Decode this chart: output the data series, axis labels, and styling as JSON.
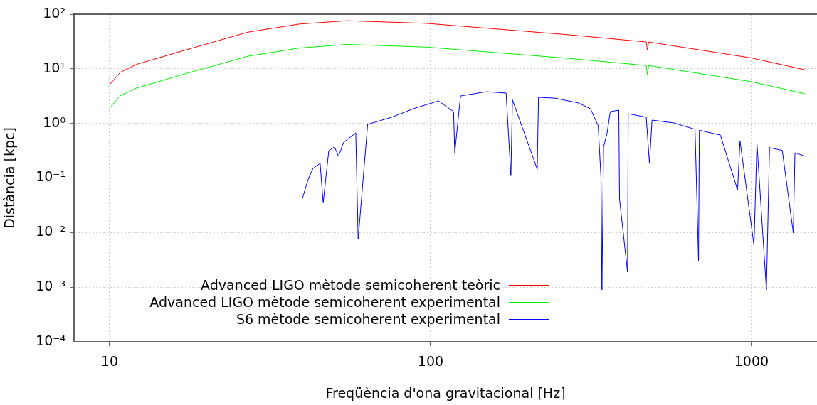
{
  "chart_data": {
    "type": "line",
    "xlabel": "Freqüència d'ona gravitacional [Hz]",
    "ylabel": "Distància [kpc]",
    "log": "xy",
    "grid": true,
    "legend": "bottom",
    "marker": "none",
    "line_style": "solid",
    "xlim": [
      7.75,
      1600
    ],
    "xticks": [
      10,
      100,
      1000
    ],
    "ylim": [
      0.0001,
      100
    ],
    "yticks": [
      {
        "value": 100,
        "label": "10²"
      },
      {
        "value": 10,
        "label": "10¹"
      },
      {
        "value": 1,
        "label": "10⁰"
      },
      {
        "value": 0.1,
        "label": "10⁻¹"
      },
      {
        "value": 0.01,
        "label": "10⁻²"
      },
      {
        "value": 0.001,
        "label": "10⁻³"
      },
      {
        "value": 0.0001,
        "label": "10⁻⁴"
      }
    ],
    "series": [
      {
        "name": "Advanced LIGO mètode semicoherent teòric",
        "color": "#ff0000",
        "x": [
          10,
          10.8,
          12.1,
          17.2,
          27,
          39,
          55,
          97,
          270,
          470,
          474,
          478,
          1000,
          1466
        ],
        "values": [
          5.1,
          8.6,
          12,
          22,
          47,
          66,
          76,
          68,
          42,
          31,
          21.7,
          31,
          15.8,
          9.6
        ]
      },
      {
        "name": "Advanced LIGO mètode semicoherent experimental",
        "color": "#00ee00",
        "x": [
          10,
          10.8,
          12.1,
          17.2,
          27,
          39,
          55,
          97,
          270,
          470,
          474,
          478,
          1000,
          1466
        ],
        "values": [
          1.9,
          3.2,
          4.4,
          8.1,
          17,
          24,
          28,
          25,
          15.5,
          11.5,
          7.8,
          11.5,
          5.8,
          3.5
        ]
      },
      {
        "name": "S6 mètode semicoherent experimental",
        "color": "#0000ff",
        "x": [
          39.9,
          41.5,
          43,
          45.3,
          46.3,
          48.2,
          50.2,
          51.7,
          53.6,
          58.5,
          59.5,
          63.7,
          75.5,
          89.4,
          106,
          118,
          119,
          124,
          149,
          172,
          178,
          180,
          215,
          217,
          244,
          289,
          315,
          333,
          340,
          342,
          346,
          355,
          363,
          386,
          388,
          411,
          413,
          470,
          481,
          490,
          573,
          667,
          684,
          688,
          800,
          905,
          921,
          1018,
          1040,
          1113,
          1138,
          1247,
          1350,
          1366,
          1471
        ],
        "values": [
          0.0425,
          0.092,
          0.149,
          0.185,
          0.035,
          0.316,
          0.37,
          0.25,
          0.45,
          0.67,
          0.0075,
          0.96,
          1.29,
          1.9,
          2.58,
          1.64,
          0.29,
          3.18,
          3.8,
          3.6,
          0.11,
          2.7,
          0.145,
          3.0,
          2.9,
          2.37,
          1.85,
          0.91,
          0.092,
          0.00089,
          0.37,
          0.67,
          1.64,
          1.75,
          0.041,
          0.0019,
          1.5,
          1.3,
          0.185,
          1.15,
          1.02,
          0.78,
          0.003,
          0.75,
          0.61,
          0.06,
          0.48,
          0.0059,
          0.43,
          0.00089,
          0.36,
          0.32,
          0.0098,
          0.29,
          0.25
        ]
      }
    ]
  }
}
